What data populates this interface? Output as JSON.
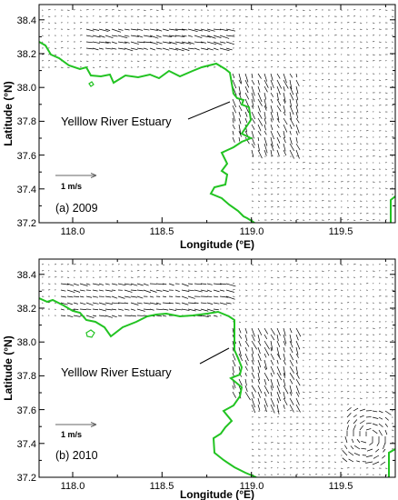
{
  "colors": {
    "coastline": "#22c322",
    "vectors": "#000000",
    "frame": "#000000",
    "background": "#ffffff"
  },
  "panels": [
    {
      "label": "(a) 2009",
      "estuary_label": "Yelllow River Estuary",
      "scale_label": "1 m/s",
      "xlabel": "Longitude (°E)",
      "ylabel": "Latitude (°N)",
      "xticks": [
        "118.0",
        "118.5",
        "119.0",
        "119.5"
      ],
      "yticks": [
        "37.2",
        "37.4",
        "37.6",
        "37.8",
        "38.0",
        "38.2",
        "38.4"
      ]
    },
    {
      "label": "(b) 2010",
      "estuary_label": "Yelllow River Estuary",
      "scale_label": "1 m/s",
      "xlabel": "Longitude (°E)",
      "ylabel": "Latitude (°N)",
      "xticks": [
        "118.0",
        "118.5",
        "119.0",
        "119.5"
      ],
      "yticks": [
        "37.2",
        "37.4",
        "37.6",
        "37.8",
        "38.0",
        "38.2",
        "38.4"
      ]
    }
  ]
}
